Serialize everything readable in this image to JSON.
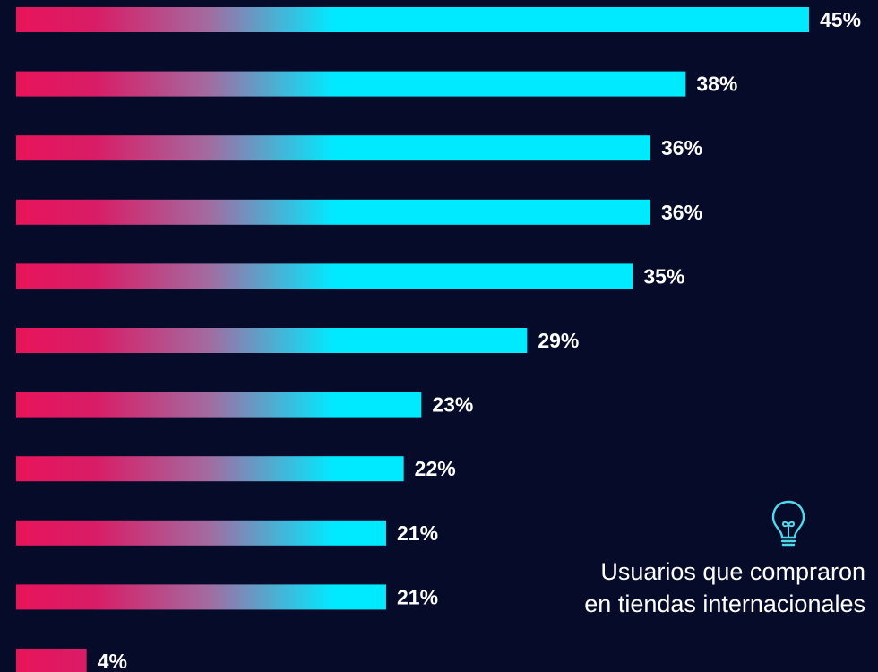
{
  "chart_data": {
    "type": "bar",
    "orientation": "horizontal",
    "values": [
      45,
      38,
      36,
      36,
      35,
      29,
      23,
      22,
      21,
      21,
      4
    ],
    "value_labels": [
      "45%",
      "38%",
      "36%",
      "36%",
      "35%",
      "29%",
      "23%",
      "22%",
      "21%",
      "21%",
      "4%"
    ],
    "unit": "%",
    "colors": {
      "bar_start": "#e8145a",
      "bar_mid": "#a46aa0",
      "bar_end": "#00eaff",
      "background": "#060b2a"
    }
  },
  "note": {
    "icon": "lightbulb-icon",
    "icon_color": "#4fd9ec",
    "text": "Usuarios que compraron en tiendas internacionales"
  }
}
